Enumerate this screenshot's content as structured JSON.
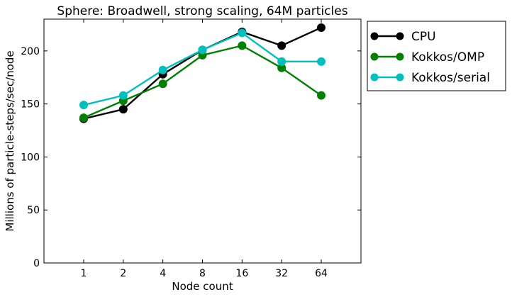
{
  "chart_data": {
    "type": "line",
    "title": "Sphere: Broadwell, strong scaling, 64M particles",
    "xlabel": "Node count",
    "ylabel": "Millions of particle-steps/sec/node",
    "categories": [
      "1",
      "2",
      "4",
      "8",
      "16",
      "32",
      "64"
    ],
    "ylim": [
      0,
      230
    ],
    "yticks": [
      0,
      50,
      100,
      150,
      200
    ],
    "grid": false,
    "legend_position": "outside-right",
    "series": [
      {
        "name": "CPU",
        "color": "#000000",
        "values": [
          136,
          145,
          178,
          201,
          218,
          205,
          222
        ]
      },
      {
        "name": "Kokkos/OMP",
        "color": "#008000",
        "values": [
          137,
          153,
          169,
          196,
          205,
          184,
          158
        ]
      },
      {
        "name": "Kokkos/serial",
        "color": "#00bfbf",
        "values": [
          149,
          158,
          182,
          201,
          217,
          190,
          190
        ]
      }
    ]
  }
}
